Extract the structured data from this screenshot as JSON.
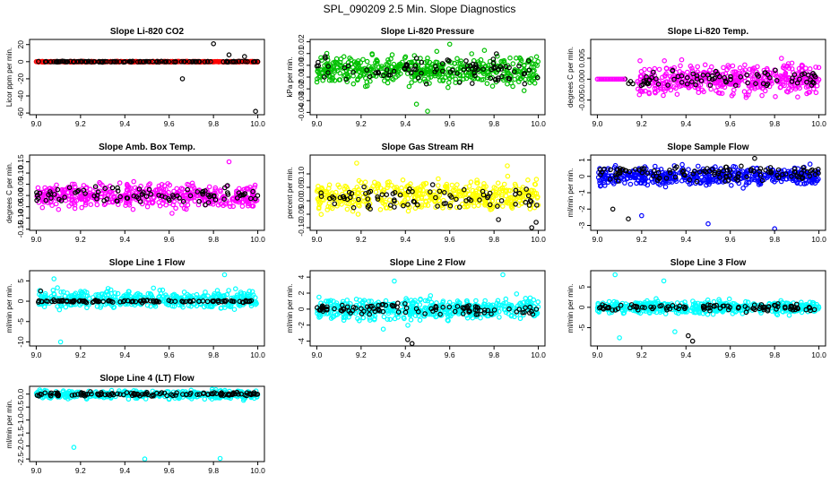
{
  "figure_title": "SPL_090209  2.5 Min. Slope Diagnostics",
  "chart_data": [
    {
      "type": "scatter",
      "title": "Slope Li-820 CO2",
      "ylabel": "Licor ppm per min.",
      "xlim": [
        8.97,
        10.03
      ],
      "ylim": [
        -62,
        26
      ],
      "xticks": [
        "9.0",
        "9.2",
        "9.4",
        "9.6",
        "9.8",
        "10.0"
      ],
      "yticks": [
        "-60",
        "-40",
        "-20",
        "0",
        "20"
      ],
      "series": [
        {
          "name": "all",
          "color": "#ff0000",
          "base": 0,
          "spread": 0.7,
          "count": 420,
          "outliers": []
        },
        {
          "name": "selected",
          "color": "#000000",
          "base": 0,
          "spread": 0.9,
          "count": 120,
          "outliers": [
            [
              9.66,
              -20
            ],
            [
              9.8,
              21
            ],
            [
              9.87,
              8
            ],
            [
              9.94,
              6
            ],
            [
              9.99,
              -58
            ]
          ]
        }
      ]
    },
    {
      "type": "scatter",
      "title": "Slope Li-820 Pressure",
      "ylabel": "kPa per min.",
      "xlim": [
        8.97,
        10.03
      ],
      "ylim": [
        -0.042,
        0.022
      ],
      "xticks": [
        "9.0",
        "9.2",
        "9.4",
        "9.6",
        "9.8",
        "10.0"
      ],
      "yticks": [
        "-0.04",
        "-0.03",
        "-0.02",
        "-0.01",
        "0.00",
        "0.01",
        "0.02"
      ],
      "series": [
        {
          "name": "all",
          "color": "#00c000",
          "base": -0.004,
          "spread": 0.02,
          "count": 480,
          "outliers": [
            [
              9.5,
              -0.039
            ],
            [
              9.6,
              0.018
            ],
            [
              9.45,
              -0.033
            ]
          ]
        },
        {
          "name": "selected",
          "color": "#000000",
          "base": -0.004,
          "spread": 0.018,
          "count": 90,
          "outliers": []
        }
      ]
    },
    {
      "type": "scatter",
      "title": "Slope Li-820 Temp.",
      "ylabel": "degrees C per min.",
      "xlim": [
        8.97,
        10.03
      ],
      "ylim": [
        -0.0085,
        0.0095
      ],
      "xticks": [
        "9.0",
        "9.2",
        "9.4",
        "9.6",
        "9.8",
        "10.0"
      ],
      "yticks": [
        "-0.005",
        "0.000",
        "0.005"
      ],
      "series": [
        {
          "name": "all",
          "color": "#ff00ff",
          "base": 0,
          "spread": 0.006,
          "count": 450,
          "xmin": 9.18,
          "outliers": []
        },
        {
          "name": "selected",
          "color": "#000000",
          "base": 0,
          "spread": 0.0035,
          "count": 80,
          "xmin": 9.1,
          "outliers": []
        },
        {
          "name": "flat",
          "color": "#ff00ff",
          "base": 0,
          "spread": 0,
          "count": 18,
          "xmin": 9.0,
          "xmax": 9.12,
          "outliers": []
        }
      ]
    },
    {
      "type": "scatter",
      "title": "Slope Amb. Box Temp.",
      "ylabel": "degrees C per min.",
      "xlim": [
        8.97,
        10.03
      ],
      "ylim": [
        -0.155,
        0.18
      ],
      "xticks": [
        "9.0",
        "9.2",
        "9.4",
        "9.6",
        "9.8",
        "10.0"
      ],
      "yticks": [
        "-0.15",
        "-0.10",
        "-0.05",
        "0.00",
        "0.05",
        "0.10",
        "0.15"
      ],
      "series": [
        {
          "name": "all",
          "color": "#ff00ff",
          "base": 0,
          "spread": 0.09,
          "count": 470,
          "outliers": [
            [
              9.87,
              0.15
            ]
          ]
        },
        {
          "name": "selected",
          "color": "#000000",
          "base": 0,
          "spread": 0.06,
          "count": 90,
          "outliers": []
        }
      ]
    },
    {
      "type": "scatter",
      "title": "Slope Gas Stream RH",
      "ylabel": "percent per min.",
      "xlim": [
        8.97,
        10.03
      ],
      "ylim": [
        -0.11,
        0.17
      ],
      "xticks": [
        "9.0",
        "9.2",
        "9.4",
        "9.6",
        "9.8",
        "10.0"
      ],
      "yticks": [
        "-0.10",
        "-0.05",
        "0.00",
        "0.05",
        "0.10"
      ],
      "series": [
        {
          "name": "all",
          "color": "#ffff00",
          "base": 0.02,
          "spread": 0.09,
          "count": 450,
          "outliers": [
            [
              9.18,
              0.14
            ],
            [
              9.86,
              0.13
            ]
          ]
        },
        {
          "name": "selected",
          "color": "#000000",
          "base": 0.01,
          "spread": 0.07,
          "count": 80,
          "outliers": [
            [
              9.97,
              -0.1
            ],
            [
              9.99,
              -0.08
            ],
            [
              9.82,
              -0.07
            ]
          ]
        }
      ]
    },
    {
      "type": "scatter",
      "title": "Slope Sample Flow",
      "ylabel": "ml/min per min.",
      "xlim": [
        8.97,
        10.03
      ],
      "ylim": [
        -3.3,
        1.3
      ],
      "xticks": [
        "9.0",
        "9.2",
        "9.4",
        "9.6",
        "9.8",
        "10.0"
      ],
      "yticks": [
        "-3",
        "-2",
        "-1",
        "0",
        "1"
      ],
      "series": [
        {
          "name": "all",
          "color": "#0000ff",
          "base": 0,
          "spread": 0.9,
          "count": 480,
          "outliers": [
            [
              9.5,
              -2.9
            ],
            [
              9.8,
              -3.2
            ],
            [
              9.2,
              -2.4
            ]
          ]
        },
        {
          "name": "selected",
          "color": "#000000",
          "base": 0.2,
          "spread": 0.8,
          "count": 110,
          "outliers": [
            [
              9.07,
              -2
            ],
            [
              9.14,
              -2.6
            ],
            [
              9.71,
              1.1
            ]
          ]
        }
      ]
    },
    {
      "type": "scatter",
      "title": "Slope Line 1 Flow",
      "ylabel": "ml/min per min.",
      "xlim": [
        8.97,
        10.03
      ],
      "ylim": [
        -11,
        7.5
      ],
      "xticks": [
        "9.0",
        "9.2",
        "9.4",
        "9.6",
        "9.8",
        "10.0"
      ],
      "yticks": [
        "-10",
        "-5",
        "0",
        "5"
      ],
      "series": [
        {
          "name": "all",
          "color": "#00ffff",
          "base": 0.5,
          "spread": 3.5,
          "count": 460,
          "outliers": [
            [
              9.11,
              -10
            ],
            [
              9.85,
              6.5
            ],
            [
              9.08,
              5.5
            ]
          ]
        },
        {
          "name": "selected",
          "color": "#000000",
          "base": 0,
          "spread": 0.5,
          "count": 110,
          "outliers": [
            [
              9.02,
              2.5
            ]
          ]
        }
      ]
    },
    {
      "type": "scatter",
      "title": "Slope Line 2 Flow",
      "ylabel": "ml/min per min.",
      "xlim": [
        8.97,
        10.03
      ],
      "ylim": [
        -4.6,
        4.8
      ],
      "xticks": [
        "9.0",
        "9.2",
        "9.4",
        "9.6",
        "9.8",
        "10.0"
      ],
      "yticks": [
        "-4",
        "-2",
        "0",
        "2",
        "4"
      ],
      "series": [
        {
          "name": "all",
          "color": "#00ffff",
          "base": 0,
          "spread": 2.2,
          "count": 470,
          "outliers": [
            [
              9.35,
              3.5
            ],
            [
              9.84,
              4.3
            ],
            [
              9.3,
              -2.5
            ]
          ]
        },
        {
          "name": "selected",
          "color": "#000000",
          "base": 0,
          "spread": 1.1,
          "count": 100,
          "outliers": [
            [
              9.41,
              -3.8
            ],
            [
              9.43,
              -4.3
            ]
          ]
        }
      ]
    },
    {
      "type": "scatter",
      "title": "Slope Line 3 Flow",
      "ylabel": "ml/min per min.",
      "xlim": [
        8.97,
        10.03
      ],
      "ylim": [
        -9.5,
        9
      ],
      "xticks": [
        "9.0",
        "9.2",
        "9.4",
        "9.6",
        "9.8",
        "10.0"
      ],
      "yticks": [
        "-5",
        "0",
        "5"
      ],
      "series": [
        {
          "name": "all",
          "color": "#00ffff",
          "base": 0,
          "spread": 2.6,
          "count": 470,
          "outliers": [
            [
              9.08,
              8
            ],
            [
              9.1,
              -7.5
            ],
            [
              9.3,
              6.5
            ],
            [
              9.35,
              -6
            ]
          ]
        },
        {
          "name": "selected",
          "color": "#000000",
          "base": 0,
          "spread": 1.5,
          "count": 100,
          "outliers": [
            [
              9.41,
              -7
            ],
            [
              9.43,
              -8.3
            ]
          ]
        }
      ]
    },
    {
      "type": "scatter",
      "title": "Slope Line 4 (LT) Flow",
      "ylabel": "ml/min per min.",
      "xlim": [
        8.97,
        10.03
      ],
      "ylim": [
        -2.6,
        0.3
      ],
      "xticks": [
        "9.0",
        "9.2",
        "9.4",
        "9.6",
        "9.8",
        "10.0"
      ],
      "yticks": [
        "-2.5",
        "-2.0",
        "-1.5",
        "-1.0",
        "-0.5",
        "0.0"
      ],
      "series": [
        {
          "name": "all",
          "color": "#00ffff",
          "base": -0.02,
          "spread": 0.25,
          "count": 430,
          "outliers": [
            [
              9.17,
              -2.05
            ],
            [
              9.49,
              -2.5
            ],
            [
              9.83,
              -2.48
            ]
          ]
        },
        {
          "name": "selected",
          "color": "#000000",
          "base": 0,
          "spread": 0.12,
          "count": 120,
          "outliers": []
        }
      ]
    }
  ]
}
